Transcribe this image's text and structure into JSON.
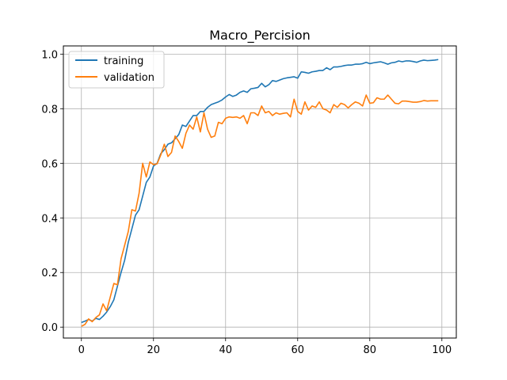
{
  "chart_data": {
    "type": "line",
    "title": "Macro_Percision",
    "xlabel": "",
    "ylabel": "",
    "xlim": [
      -5,
      104
    ],
    "ylim": [
      -0.04,
      1.03
    ],
    "xticks": [
      0,
      20,
      40,
      60,
      80,
      100
    ],
    "yticks": [
      0.0,
      0.2,
      0.4,
      0.6,
      0.8,
      1.0
    ],
    "xtick_labels": [
      "0",
      "20",
      "40",
      "60",
      "80",
      "100"
    ],
    "ytick_labels": [
      "0.0",
      "0.2",
      "0.4",
      "0.6",
      "0.8",
      "1.0"
    ],
    "grid": true,
    "legend_position": "top-left",
    "x": [
      0,
      1,
      2,
      3,
      4,
      5,
      6,
      7,
      8,
      9,
      10,
      11,
      12,
      13,
      14,
      15,
      16,
      17,
      18,
      19,
      20,
      21,
      22,
      23,
      24,
      25,
      26,
      27,
      28,
      29,
      30,
      31,
      32,
      33,
      34,
      35,
      36,
      37,
      38,
      39,
      40,
      41,
      42,
      43,
      44,
      45,
      46,
      47,
      48,
      49,
      50,
      51,
      52,
      53,
      54,
      55,
      56,
      57,
      58,
      59,
      60,
      61,
      62,
      63,
      64,
      65,
      66,
      67,
      68,
      69,
      70,
      71,
      72,
      73,
      74,
      75,
      76,
      77,
      78,
      79,
      80,
      81,
      82,
      83,
      84,
      85,
      86,
      87,
      88,
      89,
      90,
      91,
      92,
      93,
      94,
      95,
      96,
      97,
      98,
      99
    ],
    "series": [
      {
        "name": "training",
        "color": "#1f77b4",
        "values": [
          0.017,
          0.022,
          0.028,
          0.022,
          0.032,
          0.028,
          0.04,
          0.055,
          0.075,
          0.1,
          0.15,
          0.2,
          0.245,
          0.31,
          0.36,
          0.41,
          0.43,
          0.48,
          0.53,
          0.55,
          0.59,
          0.6,
          0.635,
          0.65,
          0.67,
          0.675,
          0.69,
          0.705,
          0.74,
          0.735,
          0.755,
          0.775,
          0.775,
          0.79,
          0.79,
          0.805,
          0.815,
          0.82,
          0.825,
          0.832,
          0.843,
          0.852,
          0.845,
          0.85,
          0.86,
          0.865,
          0.86,
          0.873,
          0.875,
          0.878,
          0.893,
          0.88,
          0.888,
          0.903,
          0.9,
          0.905,
          0.91,
          0.913,
          0.915,
          0.917,
          0.912,
          0.935,
          0.933,
          0.93,
          0.935,
          0.937,
          0.94,
          0.94,
          0.95,
          0.943,
          0.953,
          0.953,
          0.955,
          0.958,
          0.96,
          0.96,
          0.963,
          0.963,
          0.965,
          0.97,
          0.965,
          0.968,
          0.97,
          0.972,
          0.968,
          0.963,
          0.968,
          0.97,
          0.975,
          0.972,
          0.975,
          0.975,
          0.973,
          0.97,
          0.975,
          0.978,
          0.976,
          0.977,
          0.978,
          0.98
        ]
      },
      {
        "name": "validation",
        "color": "#ff7f0e",
        "values": [
          0.003,
          0.01,
          0.03,
          0.02,
          0.035,
          0.045,
          0.085,
          0.06,
          0.11,
          0.16,
          0.155,
          0.25,
          0.3,
          0.35,
          0.43,
          0.425,
          0.49,
          0.6,
          0.55,
          0.605,
          0.595,
          0.598,
          0.63,
          0.67,
          0.625,
          0.64,
          0.7,
          0.68,
          0.655,
          0.71,
          0.74,
          0.725,
          0.77,
          0.715,
          0.785,
          0.725,
          0.695,
          0.7,
          0.75,
          0.745,
          0.765,
          0.77,
          0.768,
          0.77,
          0.765,
          0.775,
          0.745,
          0.785,
          0.785,
          0.775,
          0.81,
          0.785,
          0.79,
          0.775,
          0.785,
          0.78,
          0.783,
          0.785,
          0.77,
          0.835,
          0.79,
          0.78,
          0.825,
          0.795,
          0.81,
          0.805,
          0.825,
          0.8,
          0.795,
          0.785,
          0.815,
          0.805,
          0.82,
          0.815,
          0.803,
          0.815,
          0.825,
          0.82,
          0.81,
          0.85,
          0.82,
          0.822,
          0.84,
          0.835,
          0.835,
          0.85,
          0.835,
          0.82,
          0.818,
          0.828,
          0.828,
          0.826,
          0.824,
          0.824,
          0.826,
          0.83,
          0.828,
          0.829,
          0.829,
          0.829
        ]
      }
    ]
  }
}
